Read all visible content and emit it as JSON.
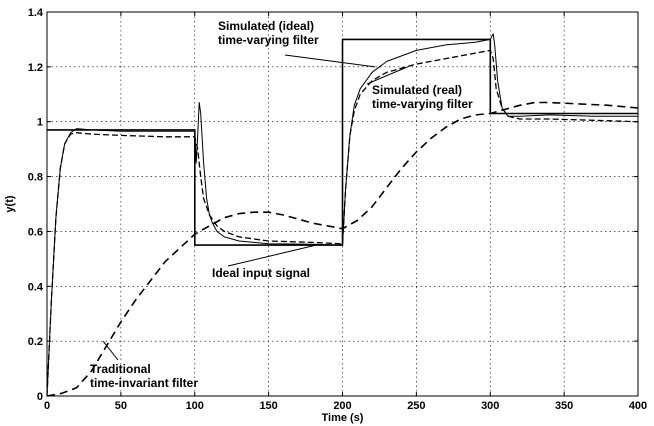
{
  "chart_data": {
    "type": "line",
    "xlabel": "Time (s)",
    "ylabel": "y(t)",
    "xlim": [
      0,
      400
    ],
    "ylim": [
      0,
      1.4
    ],
    "xticks": [
      0,
      50,
      100,
      150,
      200,
      250,
      300,
      350,
      400
    ],
    "yticks": [
      0,
      0.2,
      0.4,
      0.6,
      0.8,
      1,
      1.2,
      1.4
    ],
    "ytick_labels": [
      "0",
      "0.2",
      "0.4",
      "0.6",
      "0.8",
      "1",
      "1.2",
      "1.4"
    ],
    "grid": true,
    "series": [
      {
        "key": "ideal_input",
        "style": "solid-thick",
        "points": [
          [
            0,
            0.97
          ],
          [
            100,
            0.97
          ],
          [
            100,
            0.55
          ],
          [
            200,
            0.55
          ],
          [
            200,
            1.3
          ],
          [
            300,
            1.3
          ],
          [
            300,
            1.03
          ],
          [
            400,
            1.03
          ]
        ]
      },
      {
        "key": "simulated_ideal",
        "style": "solid-thin",
        "points": [
          [
            0,
            0
          ],
          [
            3,
            0.35
          ],
          [
            6,
            0.65
          ],
          [
            9,
            0.83
          ],
          [
            12,
            0.92
          ],
          [
            16,
            0.96
          ],
          [
            20,
            0.975
          ],
          [
            30,
            0.97
          ],
          [
            50,
            0.965
          ],
          [
            80,
            0.965
          ],
          [
            100,
            0.965
          ],
          [
            101,
            0.85
          ],
          [
            102,
            0.95
          ],
          [
            103,
            1.07
          ],
          [
            104,
            1.03
          ],
          [
            106,
            0.85
          ],
          [
            108,
            0.72
          ],
          [
            110,
            0.66
          ],
          [
            112,
            0.63
          ],
          [
            115,
            0.6
          ],
          [
            120,
            0.58
          ],
          [
            130,
            0.565
          ],
          [
            150,
            0.555
          ],
          [
            180,
            0.553
          ],
          [
            200,
            0.55
          ],
          [
            202,
            0.75
          ],
          [
            205,
            0.95
          ],
          [
            208,
            1.06
          ],
          [
            212,
            1.12
          ],
          [
            220,
            1.18
          ],
          [
            230,
            1.22
          ],
          [
            250,
            1.26
          ],
          [
            270,
            1.28
          ],
          [
            290,
            1.29
          ],
          [
            300,
            1.3
          ],
          [
            302,
            1.32
          ],
          [
            303,
            1.28
          ],
          [
            305,
            1.15
          ],
          [
            308,
            1.05
          ],
          [
            312,
            1.02
          ],
          [
            320,
            1.02
          ],
          [
            340,
            1.025
          ],
          [
            370,
            1.02
          ],
          [
            400,
            1.02
          ]
        ]
      },
      {
        "key": "simulated_real",
        "style": "dashed-thin",
        "points": [
          [
            0,
            0
          ],
          [
            3,
            0.35
          ],
          [
            6,
            0.65
          ],
          [
            9,
            0.83
          ],
          [
            12,
            0.92
          ],
          [
            16,
            0.955
          ],
          [
            20,
            0.96
          ],
          [
            30,
            0.955
          ],
          [
            50,
            0.95
          ],
          [
            80,
            0.945
          ],
          [
            100,
            0.945
          ],
          [
            102,
            0.9
          ],
          [
            104,
            0.8
          ],
          [
            106,
            0.72
          ],
          [
            110,
            0.66
          ],
          [
            115,
            0.62
          ],
          [
            120,
            0.6
          ],
          [
            130,
            0.58
          ],
          [
            150,
            0.565
          ],
          [
            180,
            0.56
          ],
          [
            200,
            0.555
          ],
          [
            202,
            0.75
          ],
          [
            205,
            0.95
          ],
          [
            208,
            1.04
          ],
          [
            212,
            1.1
          ],
          [
            220,
            1.15
          ],
          [
            230,
            1.18
          ],
          [
            250,
            1.21
          ],
          [
            270,
            1.23
          ],
          [
            290,
            1.25
          ],
          [
            300,
            1.26
          ],
          [
            302,
            1.23
          ],
          [
            304,
            1.12
          ],
          [
            308,
            1.05
          ],
          [
            312,
            1.02
          ],
          [
            320,
            1.01
          ],
          [
            340,
            1.01
          ],
          [
            370,
            1.005
          ],
          [
            400,
            1.0
          ]
        ]
      },
      {
        "key": "traditional",
        "style": "dashed-thick",
        "points": [
          [
            0,
            0
          ],
          [
            10,
            0.01
          ],
          [
            20,
            0.03
          ],
          [
            30,
            0.09
          ],
          [
            40,
            0.18
          ],
          [
            50,
            0.27
          ],
          [
            60,
            0.35
          ],
          [
            70,
            0.42
          ],
          [
            80,
            0.49
          ],
          [
            90,
            0.54
          ],
          [
            100,
            0.59
          ],
          [
            110,
            0.62
          ],
          [
            120,
            0.65
          ],
          [
            130,
            0.665
          ],
          [
            140,
            0.67
          ],
          [
            150,
            0.67
          ],
          [
            160,
            0.66
          ],
          [
            170,
            0.645
          ],
          [
            180,
            0.63
          ],
          [
            190,
            0.62
          ],
          [
            200,
            0.61
          ],
          [
            210,
            0.64
          ],
          [
            220,
            0.69
          ],
          [
            230,
            0.76
          ],
          [
            240,
            0.83
          ],
          [
            250,
            0.89
          ],
          [
            260,
            0.94
          ],
          [
            270,
            0.98
          ],
          [
            280,
            1.01
          ],
          [
            290,
            1.025
          ],
          [
            300,
            1.03
          ],
          [
            310,
            1.045
          ],
          [
            320,
            1.06
          ],
          [
            330,
            1.07
          ],
          [
            340,
            1.07
          ],
          [
            360,
            1.065
          ],
          [
            380,
            1.06
          ],
          [
            400,
            1.05
          ]
        ]
      }
    ],
    "annotations": [
      {
        "lines": [
          "Simulated (ideal)",
          "time-varying filter"
        ],
        "point": [
          222,
          1.2
        ]
      },
      {
        "lines": [
          "Simulated (real)",
          "time-varying filter"
        ],
        "point": [
          244,
          1.2
        ]
      },
      {
        "lines": [
          "Ideal input signal"
        ],
        "point": [
          182,
          0.55
        ]
      },
      {
        "lines": [
          "Traditional",
          "time-invariant filter"
        ],
        "point": [
          38,
          0.2
        ]
      }
    ]
  }
}
